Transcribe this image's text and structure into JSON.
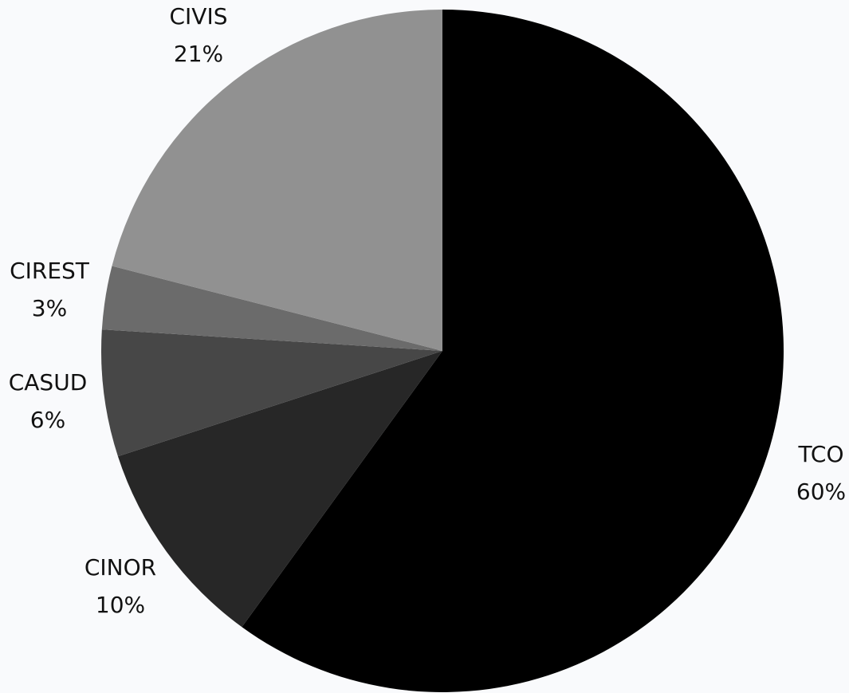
{
  "chart_data": {
    "type": "pie",
    "start_angle_deg": 0,
    "direction": "clockwise",
    "background": "#f9fafc",
    "slices": [
      {
        "label": "TCO",
        "value": 60,
        "value_label": "60%",
        "color": "#000000",
        "label_side": "right"
      },
      {
        "label": "CINOR",
        "value": 10,
        "value_label": "10%",
        "color": "#272727",
        "label_side": "left"
      },
      {
        "label": "CASUD",
        "value": 6,
        "value_label": "6%",
        "color": "#474747",
        "label_side": "left"
      },
      {
        "label": "CIREST",
        "value": 3,
        "value_label": "3%",
        "color": "#6b6b6b",
        "label_side": "left"
      },
      {
        "label": "CIVIS",
        "value": 21,
        "value_label": "21%",
        "color": "#919191",
        "label_side": "top"
      }
    ]
  }
}
